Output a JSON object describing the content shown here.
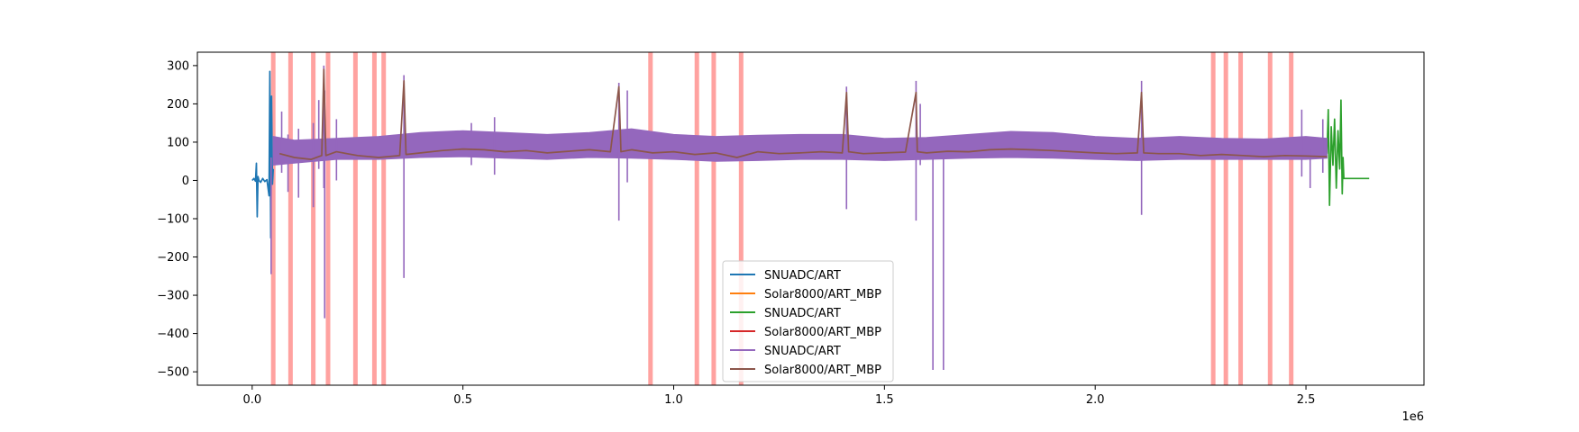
{
  "chart_data": {
    "type": "line",
    "title": "",
    "xlabel": "",
    "ylabel": "",
    "x_offset_label": "1e6",
    "xlim": [
      -0.13,
      2.78
    ],
    "ylim": [
      -535,
      335
    ],
    "x_ticks": [
      0.0,
      0.5,
      1.0,
      1.5,
      2.0,
      2.5
    ],
    "x_tick_labels": [
      "0.0",
      "0.5",
      "1.0",
      "1.5",
      "2.0",
      "2.5"
    ],
    "y_ticks": [
      300,
      200,
      100,
      0,
      -100,
      -200,
      -300,
      -400,
      -500
    ],
    "y_tick_labels": [
      "300",
      "200",
      "100",
      "0",
      "−100",
      "−200",
      "−300",
      "−400",
      "−500"
    ],
    "grid": false,
    "legend_placement": "lower-center",
    "highlight_color": "#ff9896",
    "highlight_bands_x": [
      0.05,
      0.091,
      0.145,
      0.18,
      0.245,
      0.29,
      0.312,
      0.945,
      1.055,
      1.095,
      1.16,
      2.28,
      2.31,
      2.345,
      2.415,
      2.465
    ],
    "series": [
      {
        "name": "SNUADC/ART",
        "color": "#1f77b4",
        "x": [
          0.0,
          0.004,
          0.008,
          0.01,
          0.012,
          0.014,
          0.016,
          0.02,
          0.025,
          0.03,
          0.035,
          0.04,
          0.042,
          0.044,
          0.046,
          0.048,
          0.05
        ],
        "y": [
          0,
          5,
          -2,
          45,
          -95,
          10,
          0,
          -5,
          5,
          -3,
          2,
          -40,
          285,
          -150,
          220,
          -10,
          30
        ]
      },
      {
        "name": "Solar8000/ART_MBP",
        "color": "#ff7f0e",
        "x": [],
        "y": []
      },
      {
        "name": "SNUADC/ART",
        "color": "#2ca02c",
        "x": [
          2.55,
          2.553,
          2.556,
          2.56,
          2.564,
          2.568,
          2.572,
          2.576,
          2.58,
          2.583,
          2.586,
          2.588,
          2.59,
          2.6,
          2.65
        ],
        "y": [
          70,
          185,
          -65,
          140,
          40,
          160,
          -20,
          130,
          30,
          210,
          -35,
          60,
          5,
          5,
          5
        ]
      },
      {
        "name": "Solar8000/ART_MBP",
        "color": "#d62728",
        "x": [],
        "y": []
      },
      {
        "name": "SNUADC/ART",
        "color": "#9467bd",
        "envelope": {
          "x": [
            0.05,
            0.1,
            0.2,
            0.3,
            0.4,
            0.5,
            0.6,
            0.7,
            0.8,
            0.9,
            1.0,
            1.1,
            1.2,
            1.3,
            1.4,
            1.5,
            1.6,
            1.7,
            1.8,
            1.9,
            2.0,
            2.1,
            2.2,
            2.3,
            2.4,
            2.5,
            2.55
          ],
          "upper": [
            115,
            105,
            110,
            115,
            125,
            130,
            125,
            120,
            125,
            135,
            120,
            115,
            118,
            120,
            120,
            110,
            112,
            120,
            128,
            125,
            115,
            110,
            115,
            110,
            108,
            115,
            110
          ],
          "lower": [
            40,
            45,
            55,
            55,
            60,
            62,
            58,
            55,
            60,
            58,
            55,
            50,
            52,
            55,
            55,
            52,
            55,
            58,
            60,
            58,
            55,
            52,
            55,
            55,
            55,
            55,
            58
          ]
        },
        "spikes": [
          {
            "x": 0.045,
            "top": 60,
            "bottom": -245
          },
          {
            "x": 0.07,
            "top": 180,
            "bottom": 20
          },
          {
            "x": 0.085,
            "top": 120,
            "bottom": -30
          },
          {
            "x": 0.11,
            "top": 135,
            "bottom": -45
          },
          {
            "x": 0.145,
            "top": 150,
            "bottom": -70
          },
          {
            "x": 0.158,
            "top": 210,
            "bottom": 30
          },
          {
            "x": 0.17,
            "top": 300,
            "bottom": -20
          },
          {
            "x": 0.172,
            "top": 235,
            "bottom": -360
          },
          {
            "x": 0.2,
            "top": 160,
            "bottom": 0
          },
          {
            "x": 0.36,
            "top": 275,
            "bottom": -255
          },
          {
            "x": 0.52,
            "top": 150,
            "bottom": 40
          },
          {
            "x": 0.575,
            "top": 165,
            "bottom": 15
          },
          {
            "x": 0.87,
            "top": 255,
            "bottom": -105
          },
          {
            "x": 0.89,
            "top": 235,
            "bottom": -5
          },
          {
            "x": 1.41,
            "top": 245,
            "bottom": -75
          },
          {
            "x": 1.575,
            "top": 260,
            "bottom": -105
          },
          {
            "x": 1.585,
            "top": 200,
            "bottom": 40
          },
          {
            "x": 1.615,
            "top": 60,
            "bottom": -495
          },
          {
            "x": 1.64,
            "top": 60,
            "bottom": -495
          },
          {
            "x": 2.11,
            "top": 260,
            "bottom": -90
          },
          {
            "x": 2.49,
            "top": 185,
            "bottom": 10
          },
          {
            "x": 2.51,
            "top": 80,
            "bottom": -20
          },
          {
            "x": 2.54,
            "top": 160,
            "bottom": 20
          }
        ]
      },
      {
        "name": "Solar8000/ART_MBP",
        "color": "#8c564b",
        "x": [
          0.065,
          0.1,
          0.14,
          0.165,
          0.17,
          0.175,
          0.2,
          0.25,
          0.3,
          0.35,
          0.36,
          0.365,
          0.4,
          0.45,
          0.5,
          0.55,
          0.6,
          0.65,
          0.7,
          0.75,
          0.8,
          0.85,
          0.87,
          0.875,
          0.9,
          0.95,
          1.0,
          1.05,
          1.1,
          1.15,
          1.2,
          1.25,
          1.3,
          1.35,
          1.4,
          1.41,
          1.415,
          1.45,
          1.5,
          1.55,
          1.575,
          1.578,
          1.6,
          1.65,
          1.7,
          1.75,
          1.8,
          1.85,
          1.9,
          1.95,
          2.0,
          2.05,
          2.1,
          2.11,
          2.115,
          2.15,
          2.2,
          2.25,
          2.3,
          2.35,
          2.4,
          2.45,
          2.5,
          2.55
        ],
        "y": [
          70,
          60,
          55,
          65,
          290,
          65,
          75,
          65,
          60,
          65,
          260,
          68,
          72,
          78,
          82,
          80,
          75,
          78,
          72,
          76,
          80,
          75,
          245,
          75,
          80,
          72,
          75,
          68,
          72,
          60,
          75,
          70,
          72,
          75,
          72,
          230,
          75,
          70,
          72,
          74,
          230,
          75,
          72,
          76,
          75,
          80,
          82,
          80,
          78,
          75,
          72,
          70,
          72,
          230,
          72,
          70,
          70,
          65,
          68,
          65,
          62,
          65,
          64,
          62
        ]
      }
    ]
  }
}
